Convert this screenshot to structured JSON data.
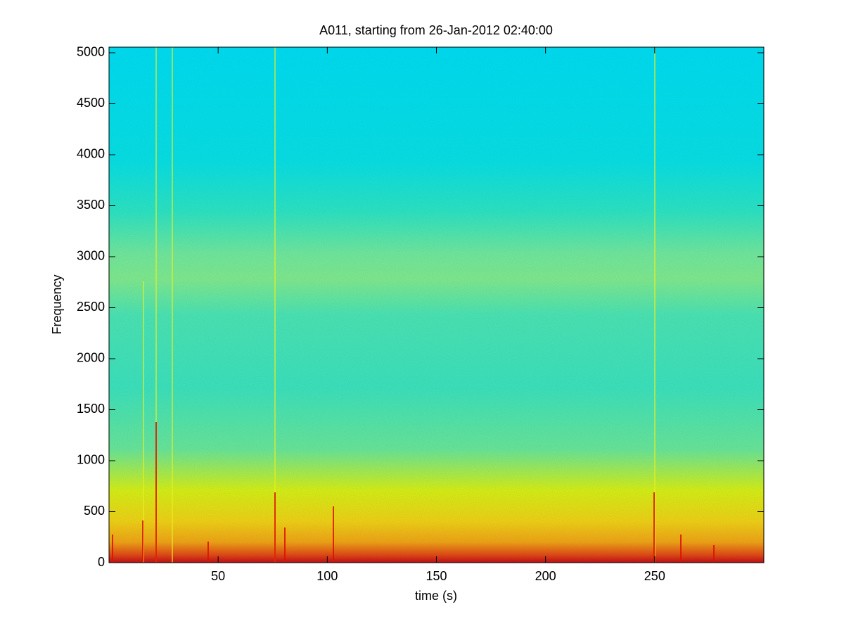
{
  "chart_data": {
    "type": "spectrogram",
    "title": "A011, starting from 26-Jan-2012 02:40:00",
    "x_label": "time (s)",
    "y_label": "Frequency",
    "xlim": [
      0,
      300
    ],
    "xticks": [
      50,
      100,
      150,
      200,
      250
    ],
    "ylim": [
      0,
      5055
    ],
    "yticks": [
      0,
      500,
      1000,
      1500,
      2000,
      2500,
      3000,
      3500,
      4000,
      4500,
      5000
    ]
  }
}
